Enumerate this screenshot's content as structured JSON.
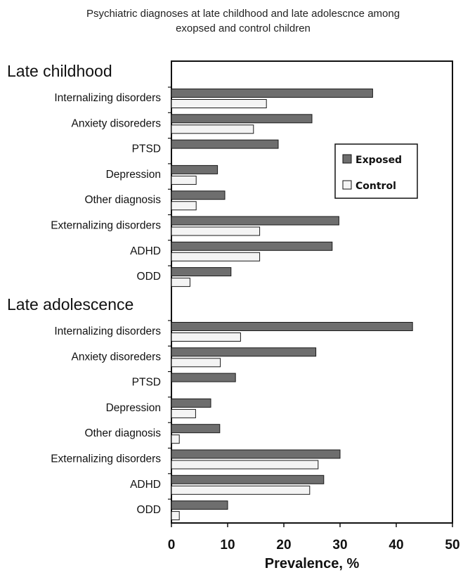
{
  "chart_data": {
    "type": "bar",
    "orientation": "horizontal",
    "title": "Psychiatric diagnoses at late childhood and late adolescnce among exopsed and control children",
    "title_lines": [
      "Psychiatric diagnoses at late childhood and late adolescnce among",
      "exopsed and control children"
    ],
    "xlabel": "Prevalence, %",
    "ylabel": "",
    "xlim": [
      0,
      50
    ],
    "xticks": [
      0,
      10,
      20,
      30,
      40,
      50
    ],
    "grid": false,
    "legend_position": "top-right",
    "colors": {
      "Exposed": "#6e6e6e",
      "Control": "#f4f4f4",
      "stroke": "#1a1a1a"
    },
    "series": [
      {
        "name": "Exposed"
      },
      {
        "name": "Control"
      }
    ],
    "groups": [
      {
        "label": "Late childhood",
        "categories": [
          {
            "label": "Internalizing disorders",
            "exposed": 35.8,
            "control": 16.9
          },
          {
            "label": "Anxiety disoreders",
            "exposed": 25.0,
            "control": 14.6
          },
          {
            "label": "PTSD",
            "exposed": 19.0,
            "control": null
          },
          {
            "label": "Depression",
            "exposed": 8.2,
            "control": 4.4
          },
          {
            "label": "Other diagnosis",
            "exposed": 9.5,
            "control": 4.4
          },
          {
            "label": "Externalizing disorders",
            "exposed": 29.8,
            "control": 15.7
          },
          {
            "label": "ADHD",
            "exposed": 28.6,
            "control": 15.7
          },
          {
            "label": "ODD",
            "exposed": 10.6,
            "control": 3.3
          }
        ]
      },
      {
        "label": "Late adolescence",
        "categories": [
          {
            "label": "Internalizing disorders",
            "exposed": 42.9,
            "control": 12.3
          },
          {
            "label": "Anxiety disoreders",
            "exposed": 25.7,
            "control": 8.7
          },
          {
            "label": "PTSD",
            "exposed": 11.4,
            "control": null
          },
          {
            "label": "Depression",
            "exposed": 7.0,
            "control": 4.3
          },
          {
            "label": "Other diagnosis",
            "exposed": 8.6,
            "control": 1.4
          },
          {
            "label": "Externalizing disorders",
            "exposed": 30.0,
            "control": 26.1
          },
          {
            "label": "ADHD",
            "exposed": 27.1,
            "control": 24.6
          },
          {
            "label": "ODD",
            "exposed": 10.0,
            "control": 1.4
          }
        ]
      }
    ]
  }
}
